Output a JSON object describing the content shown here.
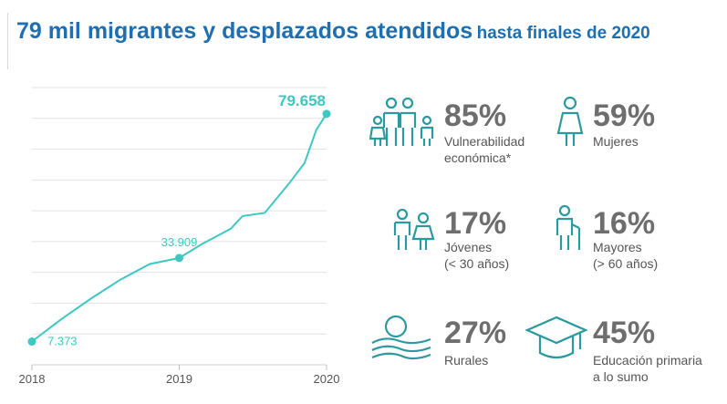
{
  "header": {
    "title_main": "79 mil migrantes y desplazados atendidos",
    "title_sub": "hasta finales de 2020"
  },
  "chart_data": {
    "type": "line",
    "x": [
      2018.0,
      2018.2,
      2018.4,
      2018.6,
      2018.8,
      2019.0,
      2019.15,
      2019.35,
      2019.43,
      2019.58,
      2019.75,
      2019.85,
      2019.93,
      2020.0
    ],
    "series": [
      {
        "values": [
          7373,
          14500,
          21000,
          27000,
          32000,
          33909,
          38200,
          43200,
          47200,
          48200,
          57800,
          64000,
          74500,
          79658
        ]
      }
    ],
    "tick_labels": [
      "2018",
      "2019",
      "2020"
    ],
    "data_labels": [
      {
        "x": 2018.0,
        "y": 7373,
        "text": "7.373"
      },
      {
        "x": 2019.0,
        "y": 33909,
        "text": "33.909"
      },
      {
        "x": 2020.0,
        "y": 79658,
        "text": "79.658"
      }
    ],
    "xlim": [
      2018,
      2020
    ],
    "ylim": [
      0,
      88000
    ],
    "grid": true,
    "line_color": "#3ec8c1"
  },
  "stats": [
    {
      "value": "85%",
      "label_1": "Vulnerabilidad",
      "label_2": "económica*",
      "icon": "family-icon"
    },
    {
      "value": "59%",
      "label_1": "Mujeres",
      "label_2": "",
      "icon": "woman-icon"
    },
    {
      "value": "17%",
      "label_1": "Jóvenes",
      "label_2": "(< 30 años)",
      "icon": "youth-icon"
    },
    {
      "value": "16%",
      "label_1": "Mayores",
      "label_2": "(> 60 años)",
      "icon": "elderly-icon"
    },
    {
      "value": "27%",
      "label_1": "Rurales",
      "label_2": "",
      "icon": "rural-landscape-icon"
    },
    {
      "value": "45%",
      "label_1": "Educación primaria",
      "label_2": "a lo sumo",
      "icon": "graduation-cap-icon"
    }
  ],
  "colors": {
    "title": "#1f6fb0",
    "accent": "#3ec8c1",
    "icon": "#2a9aa0",
    "stat_value": "#6e6e6e"
  }
}
